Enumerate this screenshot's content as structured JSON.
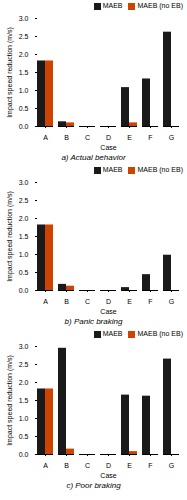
{
  "chart_data": [
    {
      "type": "bar",
      "title": "a) Actual behavior",
      "categories": [
        "A",
        "B",
        "C",
        "D",
        "E",
        "F",
        "G"
      ],
      "series": [
        {
          "name": "MAEB",
          "color": "#1a1a1a",
          "values": [
            1.82,
            0.13,
            0.0,
            0.0,
            1.08,
            1.32,
            2.62
          ]
        },
        {
          "name": "MAEB (no EB)",
          "color": "#cc4400",
          "values": [
            1.82,
            0.1,
            0.0,
            0.0,
            0.1,
            0.0,
            0.0
          ]
        }
      ],
      "xlabel": "Case",
      "ylabel": "Impact speed reduction (m/s)",
      "ylim": [
        0,
        3.0
      ],
      "yticks": [
        {
          "value": 0.0,
          "label": "0.0"
        },
        0.5,
        {
          "value": 1.0,
          "label": "1.0"
        },
        1.5,
        {
          "value": 2.0,
          "label": "2.0"
        },
        2.5,
        {
          "value": 3.0,
          "label": "3.0"
        }
      ],
      "legend": "upper right"
    },
    {
      "type": "bar",
      "title": "b) Panic braking",
      "categories": [
        "A",
        "B",
        "C",
        "D",
        "E",
        "F",
        "G"
      ],
      "series": [
        {
          "name": "MAEB",
          "color": "#1a1a1a",
          "values": [
            1.82,
            0.17,
            0.0,
            0.0,
            0.08,
            0.44,
            0.98
          ]
        },
        {
          "name": "MAEB (no EB)",
          "color": "#cc4400",
          "values": [
            1.82,
            0.12,
            0.0,
            0.0,
            0.0,
            0.0,
            0.0
          ]
        }
      ],
      "xlabel": "Case",
      "ylabel": "Impact speed reduction (m/s)",
      "ylim": [
        0,
        3.0
      ],
      "yticks": [
        {
          "value": 0.0,
          "label": "0.0"
        },
        0.5,
        {
          "value": 1.0,
          "label": "1.0"
        },
        1.5,
        {
          "value": 2.0,
          "label": "2.0"
        },
        2.5,
        {
          "value": 3.0,
          "label": "3.0"
        }
      ],
      "legend": "upper right"
    },
    {
      "type": "bar",
      "title": "c) Poor braking",
      "categories": [
        "A",
        "B",
        "C",
        "D",
        "E",
        "F",
        "G"
      ],
      "series": [
        {
          "name": "MAEB",
          "color": "#1a1a1a",
          "values": [
            1.82,
            2.95,
            0.0,
            0.0,
            1.65,
            1.62,
            2.65
          ]
        },
        {
          "name": "MAEB (no EB)",
          "color": "#cc4400",
          "values": [
            1.82,
            0.15,
            0.0,
            0.0,
            0.08,
            0.0,
            0.0
          ]
        }
      ],
      "xlabel": "Case",
      "ylabel": "Impact speed reduction (m/s)",
      "ylim": [
        0,
        3.0
      ],
      "yticks": [
        {
          "value": 0.0,
          "label": "0.0"
        },
        0.5,
        {
          "value": 1.0,
          "label": "1.0"
        },
        1.5,
        {
          "value": 2.0,
          "label": "2.0"
        },
        2.5,
        {
          "value": 3.0,
          "label": "3.0"
        }
      ],
      "legend": "upper right"
    }
  ]
}
